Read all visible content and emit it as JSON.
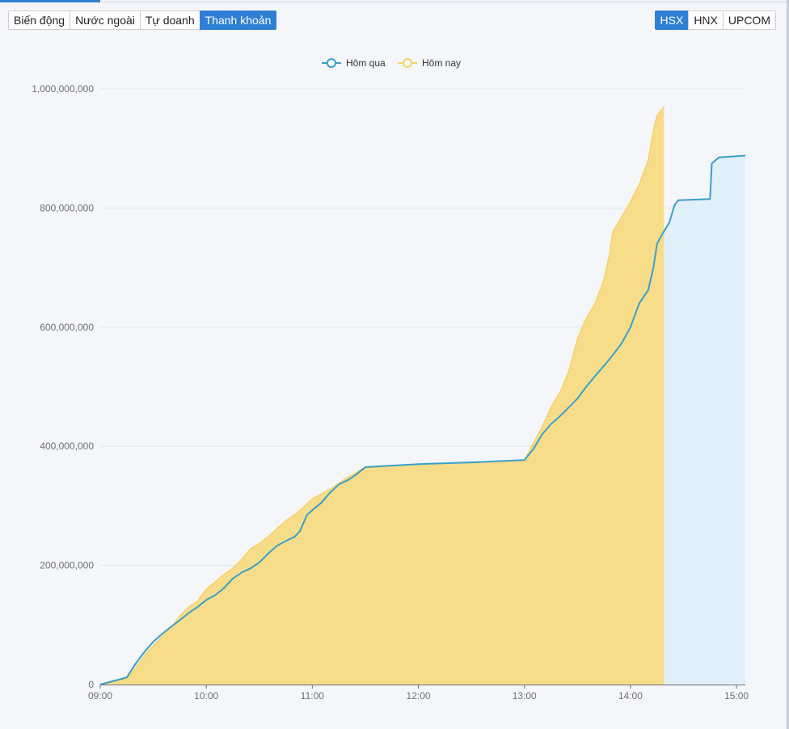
{
  "tabs": [
    {
      "label": "Biến động",
      "active": false
    },
    {
      "label": "Nước ngoài",
      "active": false
    },
    {
      "label": "Tự doanh",
      "active": false
    },
    {
      "label": "Thanh khoản",
      "active": true
    }
  ],
  "markets": [
    {
      "label": "HSX",
      "active": true
    },
    {
      "label": "HNX",
      "active": false
    },
    {
      "label": "UPCOM",
      "active": false
    }
  ],
  "colors": {
    "accent": "#2f7fd4",
    "yesterday_line": "#3a9fc8",
    "yesterday_fill": "#e1eff9",
    "today_line": "#f7d26b",
    "today_fill": "#f7dd8a",
    "grid": "#e3e6ec"
  },
  "chart_data": {
    "type": "area",
    "title": "",
    "xlabel": "",
    "ylabel": "",
    "x_axis": "time",
    "xlim": [
      "09:00",
      "15:05"
    ],
    "ylim": [
      0,
      1000000000
    ],
    "x_ticks": [
      "09:00",
      "10:00",
      "11:00",
      "12:00",
      "13:00",
      "14:00",
      "15:00"
    ],
    "y_ticks": [
      "0",
      "200,000,000",
      "400,000,000",
      "600,000,000",
      "800,000,000",
      "1,000,000,000"
    ],
    "grid": true,
    "legend_position": "top-center",
    "series": [
      {
        "name": "Hôm qua",
        "color_key": "yesterday_line",
        "points": [
          [
            "09:00",
            0
          ],
          [
            "09:10",
            8000000
          ],
          [
            "09:15",
            12000000
          ],
          [
            "09:20",
            35000000
          ],
          [
            "09:25",
            55000000
          ],
          [
            "09:30",
            72000000
          ],
          [
            "09:35",
            85000000
          ],
          [
            "09:40",
            97000000
          ],
          [
            "09:45",
            108000000
          ],
          [
            "09:50",
            120000000
          ],
          [
            "09:55",
            130000000
          ],
          [
            "10:00",
            142000000
          ],
          [
            "10:05",
            150000000
          ],
          [
            "10:10",
            162000000
          ],
          [
            "10:15",
            178000000
          ],
          [
            "10:20",
            188000000
          ],
          [
            "10:25",
            195000000
          ],
          [
            "10:30",
            205000000
          ],
          [
            "10:35",
            220000000
          ],
          [
            "10:40",
            233000000
          ],
          [
            "10:45",
            241000000
          ],
          [
            "10:50",
            248000000
          ],
          [
            "10:53",
            258000000
          ],
          [
            "10:57",
            285000000
          ],
          [
            "11:00",
            293000000
          ],
          [
            "11:05",
            305000000
          ],
          [
            "11:10",
            322000000
          ],
          [
            "11:15",
            336000000
          ],
          [
            "11:20",
            343000000
          ],
          [
            "11:25",
            353000000
          ],
          [
            "11:30",
            365000000
          ],
          [
            "12:00",
            370000000
          ],
          [
            "12:30",
            373000000
          ],
          [
            "13:00",
            377000000
          ],
          [
            "13:05",
            395000000
          ],
          [
            "13:10",
            420000000
          ],
          [
            "13:15",
            437000000
          ],
          [
            "13:20",
            450000000
          ],
          [
            "13:25",
            465000000
          ],
          [
            "13:30",
            480000000
          ],
          [
            "13:35",
            500000000
          ],
          [
            "13:40",
            518000000
          ],
          [
            "13:45",
            535000000
          ],
          [
            "13:50",
            553000000
          ],
          [
            "13:55",
            573000000
          ],
          [
            "14:00",
            600000000
          ],
          [
            "14:05",
            640000000
          ],
          [
            "14:10",
            662000000
          ],
          [
            "14:13",
            700000000
          ],
          [
            "14:15",
            740000000
          ],
          [
            "14:18",
            756000000
          ],
          [
            "14:22",
            776000000
          ],
          [
            "14:25",
            805000000
          ],
          [
            "14:27",
            813000000
          ],
          [
            "14:45",
            815000000
          ],
          [
            "14:46",
            875000000
          ],
          [
            "14:50",
            885000000
          ],
          [
            "15:05",
            888000000
          ]
        ]
      },
      {
        "name": "Hôm nay",
        "color_key": "today_line",
        "points": [
          [
            "09:00",
            0
          ],
          [
            "09:10",
            6000000
          ],
          [
            "09:15",
            10000000
          ],
          [
            "09:20",
            28000000
          ],
          [
            "09:25",
            48000000
          ],
          [
            "09:30",
            65000000
          ],
          [
            "09:35",
            80000000
          ],
          [
            "09:40",
            95000000
          ],
          [
            "09:45",
            115000000
          ],
          [
            "09:50",
            130000000
          ],
          [
            "09:55",
            140000000
          ],
          [
            "10:00",
            160000000
          ],
          [
            "10:05",
            172000000
          ],
          [
            "10:10",
            185000000
          ],
          [
            "10:15",
            195000000
          ],
          [
            "10:20",
            210000000
          ],
          [
            "10:25",
            228000000
          ],
          [
            "10:30",
            237000000
          ],
          [
            "10:35",
            248000000
          ],
          [
            "10:40",
            262000000
          ],
          [
            "10:45",
            275000000
          ],
          [
            "10:50",
            285000000
          ],
          [
            "10:55",
            298000000
          ],
          [
            "11:00",
            312000000
          ],
          [
            "11:05",
            320000000
          ],
          [
            "11:10",
            328000000
          ],
          [
            "11:15",
            338000000
          ],
          [
            "11:20",
            348000000
          ],
          [
            "11:25",
            356000000
          ],
          [
            "11:30",
            365000000
          ],
          [
            "12:00",
            370000000
          ],
          [
            "12:30",
            373000000
          ],
          [
            "13:00",
            376000000
          ],
          [
            "13:05",
            405000000
          ],
          [
            "13:10",
            432000000
          ],
          [
            "13:15",
            465000000
          ],
          [
            "13:20",
            490000000
          ],
          [
            "13:25",
            525000000
          ],
          [
            "13:30",
            580000000
          ],
          [
            "13:35",
            615000000
          ],
          [
            "13:40",
            640000000
          ],
          [
            "13:45",
            680000000
          ],
          [
            "13:48",
            720000000
          ],
          [
            "13:50",
            760000000
          ],
          [
            "13:55",
            785000000
          ],
          [
            "14:00",
            810000000
          ],
          [
            "14:05",
            840000000
          ],
          [
            "14:10",
            880000000
          ],
          [
            "14:13",
            930000000
          ],
          [
            "14:15",
            955000000
          ],
          [
            "14:19",
            970000000
          ]
        ]
      }
    ]
  }
}
